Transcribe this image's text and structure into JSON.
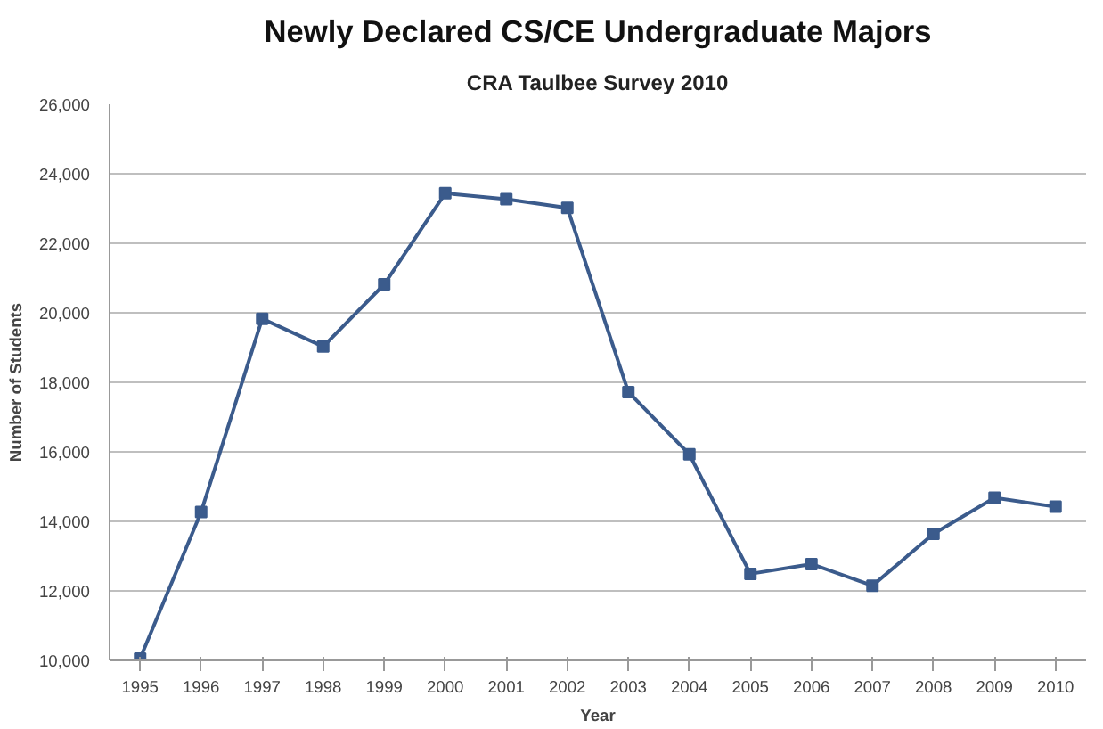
{
  "chart_data": {
    "type": "line",
    "title": "Newly Declared CS/CE Undergraduate Majors",
    "subtitle": "CRA Taulbee Survey 2010",
    "xlabel": "Year",
    "ylabel": "Number of Students",
    "categories": [
      "1995",
      "1996",
      "1997",
      "1998",
      "1999",
      "2000",
      "2001",
      "2002",
      "2003",
      "2004",
      "2005",
      "2006",
      "2007",
      "2008",
      "2009",
      "2010"
    ],
    "series": [
      {
        "color": "#3b5b8c",
        "values": [
          10050,
          14270,
          19830,
          19030,
          20820,
          23440,
          23270,
          23020,
          17720,
          15930,
          12490,
          12770,
          12150,
          13640,
          14680,
          14420
        ]
      }
    ],
    "ylim": [
      10000,
      26000
    ],
    "yticks": [
      {
        "value": 10000,
        "label": "10,000"
      },
      {
        "value": 12000,
        "label": "12,000"
      },
      {
        "value": 14000,
        "label": "14,000"
      },
      {
        "value": 16000,
        "label": "16,000"
      },
      {
        "value": 18000,
        "label": "18,000"
      },
      {
        "value": 20000,
        "label": "20,000"
      },
      {
        "value": 22000,
        "label": "22,000"
      },
      {
        "value": 24000,
        "label": "24,000"
      },
      {
        "value": 26000,
        "label": "26,000"
      }
    ],
    "grid": "y",
    "marker": "square",
    "line_style": "solid"
  }
}
